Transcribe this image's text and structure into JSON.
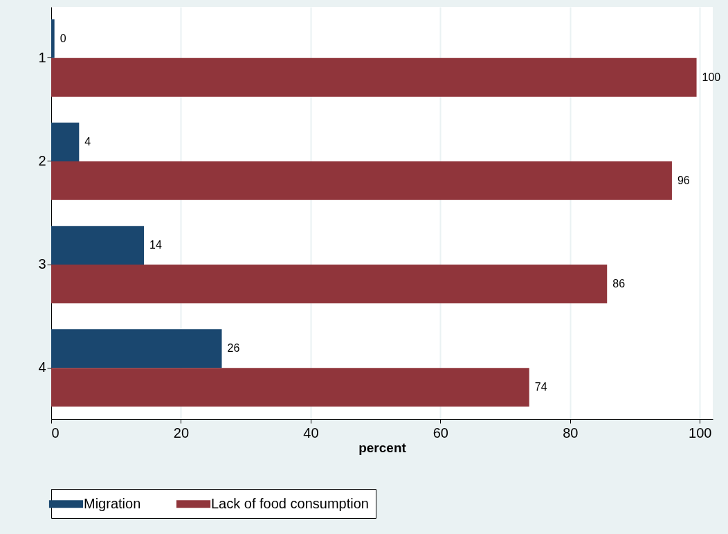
{
  "chart_data": {
    "type": "bar",
    "orientation": "horizontal",
    "categories": [
      "1",
      "2",
      "3",
      "4"
    ],
    "series": [
      {
        "name": "Migration",
        "color": "#1a476f",
        "values": [
          0.5,
          4.3,
          14.3,
          26.3
        ],
        "value_labels": [
          "0",
          "4",
          "14",
          "26"
        ]
      },
      {
        "name": "Lack of food consumption",
        "color": "#90353b",
        "values": [
          99.5,
          95.7,
          85.7,
          73.7
        ],
        "value_labels": [
          "100",
          "96",
          "86",
          "74"
        ]
      }
    ],
    "xlabel": "percent",
    "xlim": [
      0,
      102
    ],
    "xticks": [
      0,
      20,
      40,
      60,
      80,
      100
    ],
    "grid": "x",
    "legend": "bottom"
  }
}
